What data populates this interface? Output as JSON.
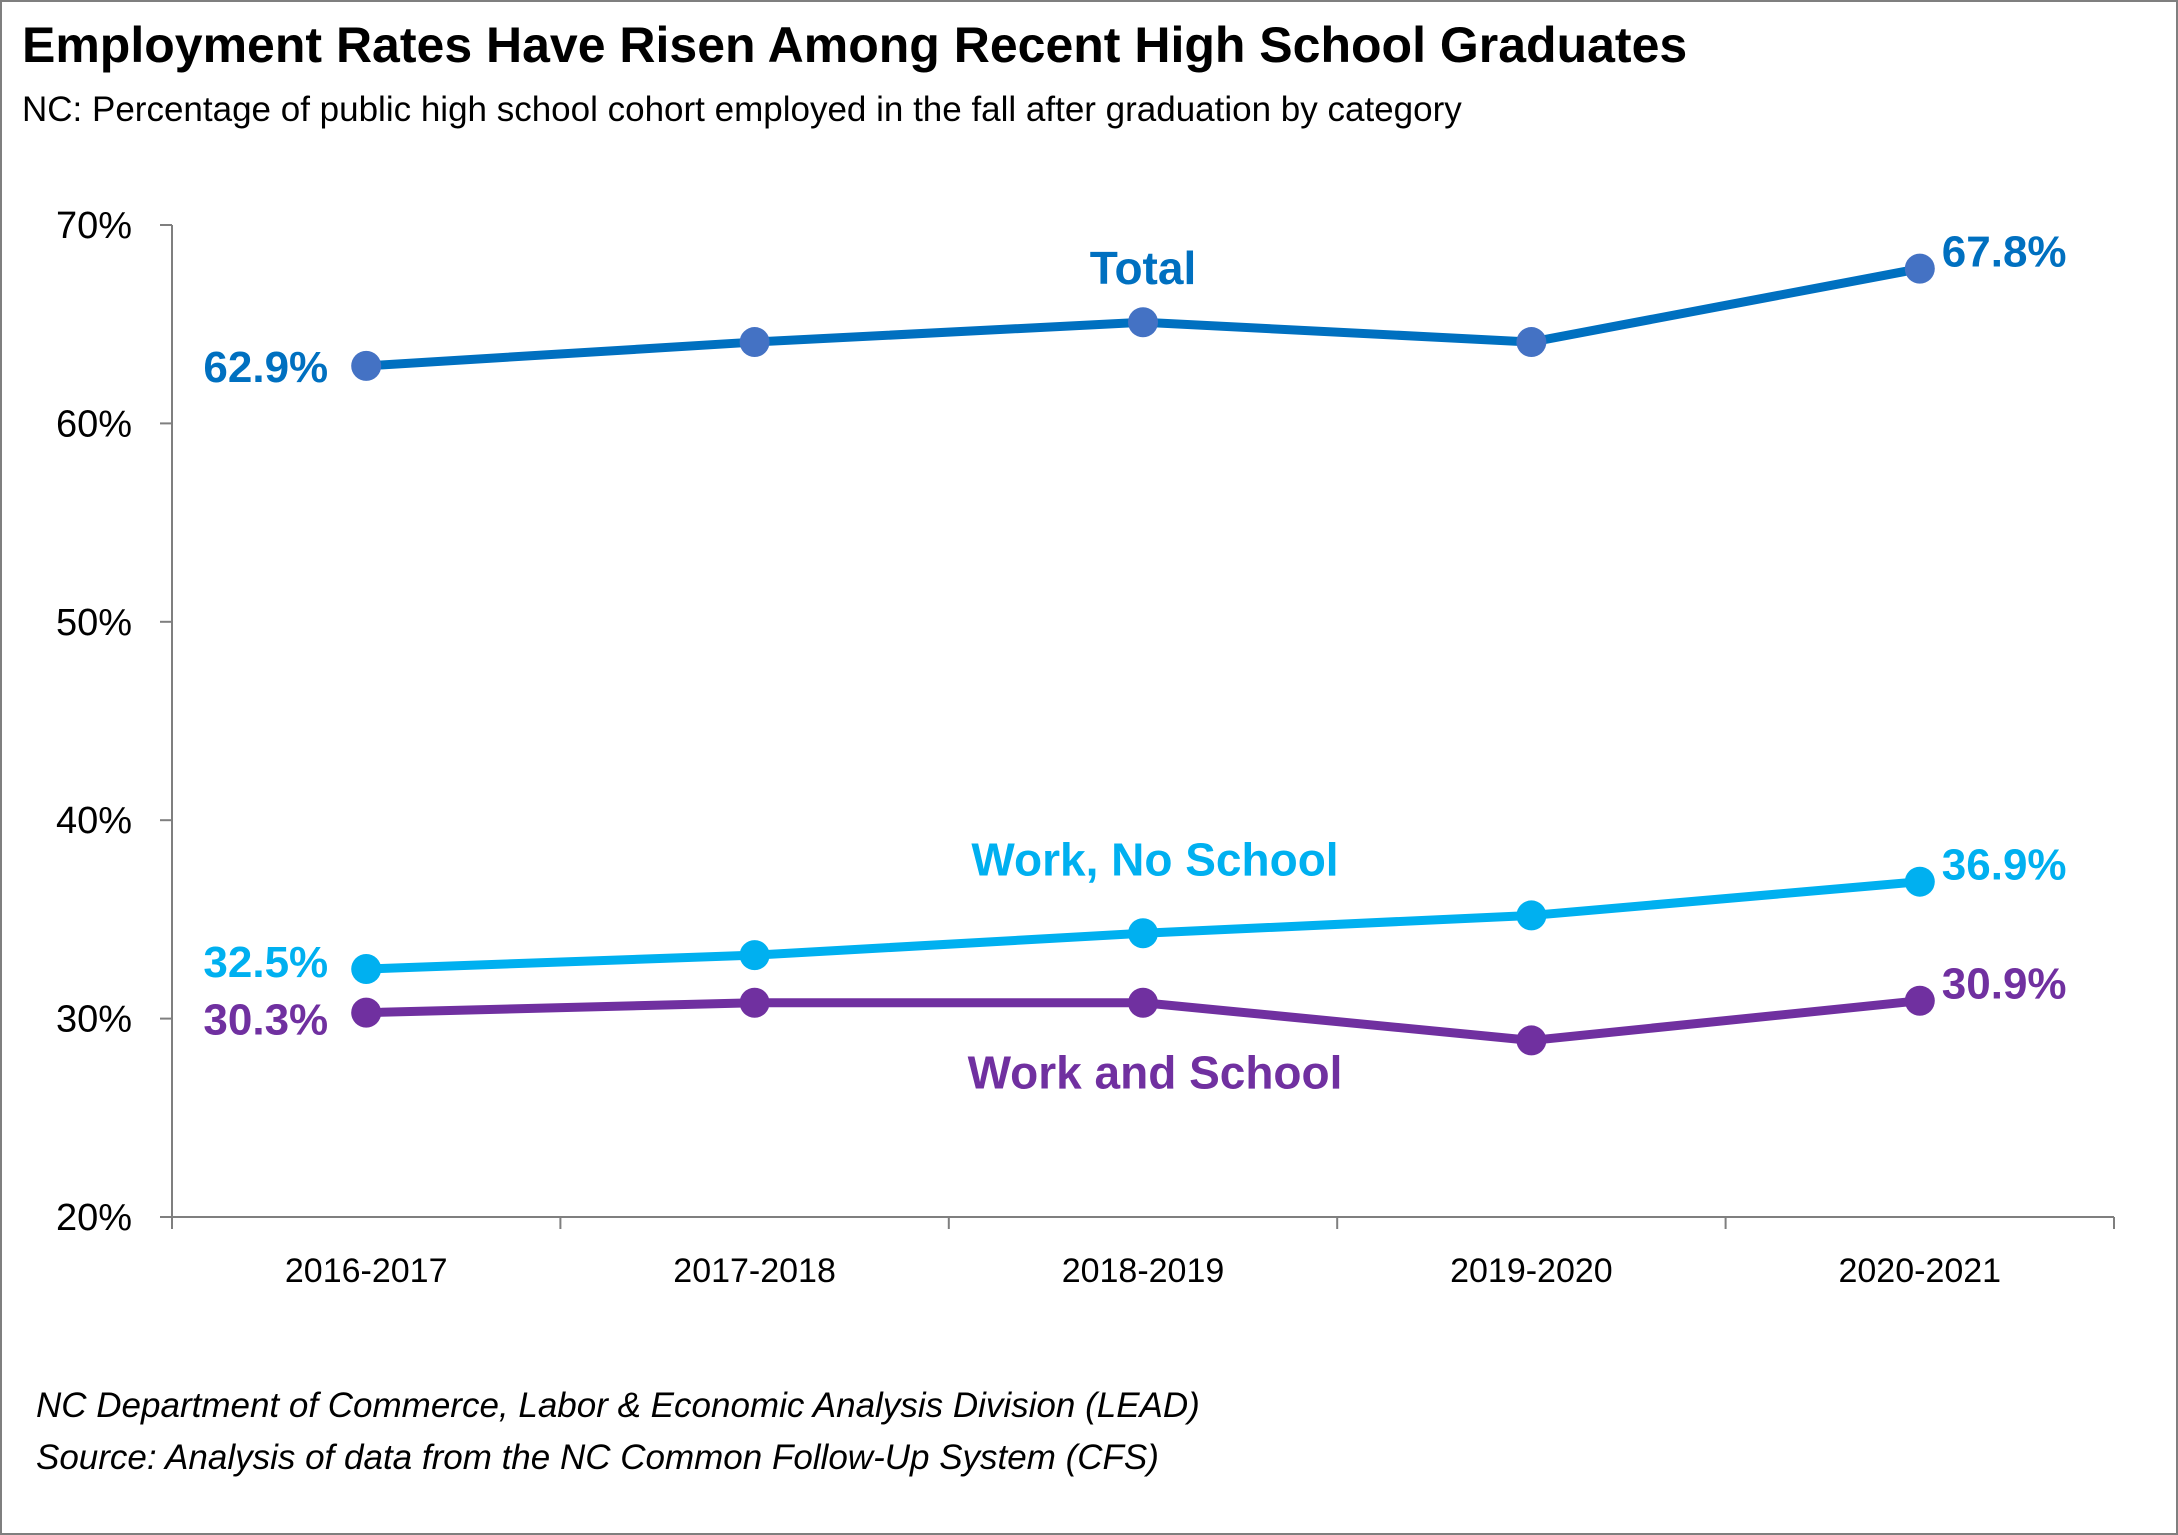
{
  "title": "Employment Rates Have Risen Among Recent High School Graduates",
  "subtitle": "NC: Percentage of public high school cohort employed in the fall after graduation by category",
  "notes": [
    "NC Department of Commerce, Labor & Economic Analysis Division (LEAD)",
    "Source: Analysis of data from the NC Common Follow-Up System (CFS)"
  ],
  "chart_data": {
    "type": "line",
    "title": "Employment Rates Have Risen Among Recent High School Graduates",
    "subtitle": "NC: Percentage of public high school cohort employed in the fall after graduation by category",
    "xlabel": "",
    "ylabel": "",
    "categories": [
      "2016-2017",
      "2017-2018",
      "2018-2019",
      "2019-2020",
      "2020-2021"
    ],
    "ylim": [
      20,
      70
    ],
    "yticks": [
      {
        "value": 70,
        "label": "70%"
      },
      {
        "value": 60,
        "label": "60%"
      },
      {
        "value": 50,
        "label": "50%"
      },
      {
        "value": 40,
        "label": "40%"
      },
      {
        "value": 30,
        "label": "30%"
      },
      {
        "value": 20,
        "label": "20%"
      }
    ],
    "grid": false,
    "legend": "none (series labeled directly on chart)",
    "series": [
      {
        "name": "Total",
        "color": "#0070C0",
        "marker_color": "#4472C4",
        "values": [
          62.9,
          64.1,
          65.1,
          64.1,
          67.8
        ],
        "labels": {
          "first": "62.9%",
          "last": "67.8%"
        }
      },
      {
        "name": "Work, No School",
        "color": "#00B0F0",
        "marker_color": "#00B0F0",
        "values": [
          32.5,
          33.2,
          34.3,
          35.2,
          36.9
        ],
        "labels": {
          "first": "32.5%",
          "last": "36.9%"
        }
      },
      {
        "name": "Work and School",
        "color": "#7030A0",
        "marker_color": "#7030A0",
        "values": [
          30.3,
          30.8,
          30.8,
          28.9,
          30.9
        ],
        "labels": {
          "first": "30.3%",
          "last": "30.9%"
        }
      }
    ]
  }
}
